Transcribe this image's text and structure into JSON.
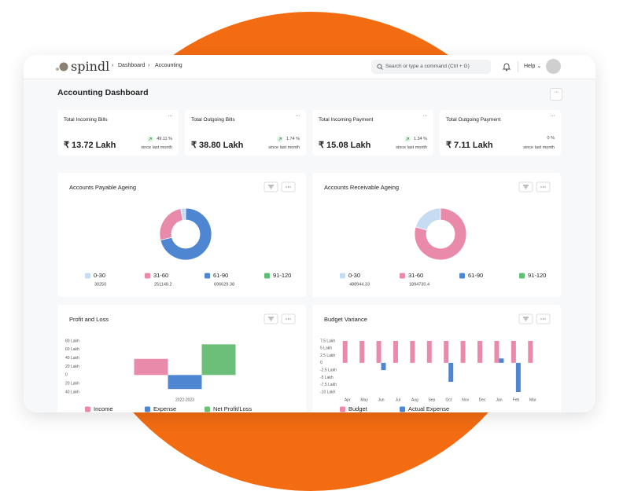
{
  "header": {
    "logo": "spindl",
    "breadcrumbs": [
      "Dashboard",
      "Accounting"
    ],
    "search": "Search or type a command (Ctrl + G)",
    "help": "Help"
  },
  "page_title": "Accounting Dashboard",
  "cards": [
    {
      "title": "Total Incoming Bills",
      "value": "₹ 13.72 Lakh",
      "change": "49.11 %",
      "note": "since last month"
    },
    {
      "title": "Total Outgoing Bills",
      "value": "₹ 38.80 Lakh",
      "change": "1.74 %",
      "note": "since last month"
    },
    {
      "title": "Total Incoming Payment",
      "value": "₹ 15.08 Lakh",
      "change": "1.34 %",
      "note": "since last month"
    },
    {
      "title": "Total Outgoing Payment",
      "value": "₹ 7.11 Lakh",
      "change": "0 %",
      "note": "since last month"
    }
  ],
  "chart_data": [
    {
      "type": "pie",
      "title": "Accounts Payable Ageing",
      "categories": [
        "0-30",
        "31-60",
        "61-90",
        "91-120"
      ],
      "values": [
        30250,
        251148.2,
        696629.38,
        null
      ],
      "colors": [
        "#c6dcf2",
        "#e98aab",
        "#4f86d1",
        "#5fbd74"
      ]
    },
    {
      "type": "pie",
      "title": "Accounts Receivable Ageing",
      "categories": [
        "0-30",
        "31-60",
        "61-90",
        "91-120"
      ],
      "values": [
        488944.33,
        1894730.4,
        null,
        null
      ],
      "colors": [
        "#c6dcf2",
        "#e98aab",
        "#4f86d1",
        "#5fbd74"
      ]
    },
    {
      "type": "bar",
      "title": "Profit and Loss",
      "categories": [
        "2022-2023"
      ],
      "grid": false,
      "series": [
        {
          "name": "Income",
          "color": "#e98aab",
          "values": [
            38
          ]
        },
        {
          "name": "Expense",
          "color": "#4f86d1",
          "values": [
            -33
          ]
        },
        {
          "name": "Net Profit/Loss",
          "color": "#6cbf78",
          "values": [
            72
          ]
        }
      ],
      "ylim": [
        -40,
        80
      ],
      "yticks": [
        {
          "value": 80,
          "label": "80 Lakh"
        },
        {
          "value": 60,
          "label": "60 Lakh"
        },
        {
          "value": 40,
          "label": "40 Lakh"
        },
        {
          "value": 20,
          "label": "20 Lakh"
        },
        0,
        {
          "value": -20,
          "label": "20 Lakh"
        },
        {
          "value": -40,
          "label": "40 Lakh"
        }
      ]
    },
    {
      "type": "bar",
      "title": "Budget Variance",
      "categories": [
        "Apr",
        "May",
        "Jun",
        "Jul",
        "Aug",
        "Sep",
        "Oct",
        "Nov",
        "Dec",
        "Jan",
        "Feb",
        "Mar"
      ],
      "grid": false,
      "series": [
        {
          "name": "Budget",
          "color": "#e98aab",
          "values": [
            7.5,
            7.5,
            7.5,
            7.5,
            7.5,
            7.5,
            7.5,
            7.5,
            7.5,
            7.5,
            7.5,
            7.5
          ]
        },
        {
          "name": "Actual Expense",
          "color": "#4f86d1",
          "values": [
            0,
            0,
            -2.5,
            0,
            0,
            0,
            -6.5,
            0,
            0,
            1.5,
            -10,
            0
          ]
        }
      ],
      "ylim": [
        -10,
        7.5
      ],
      "yticks": [
        {
          "value": 7.5,
          "label": "7.5 Lakh"
        },
        {
          "value": 5,
          "label": "5 Lakh"
        },
        {
          "value": 2.5,
          "label": "2.5 Lakh"
        },
        0,
        {
          "value": -2.5,
          "label": "-2.5 Lakh"
        },
        {
          "value": -5,
          "label": "-5 Lakh"
        },
        {
          "value": -7.5,
          "label": "-7.5 Lakh"
        },
        {
          "value": -10,
          "label": "-10 Lakh"
        }
      ]
    }
  ]
}
